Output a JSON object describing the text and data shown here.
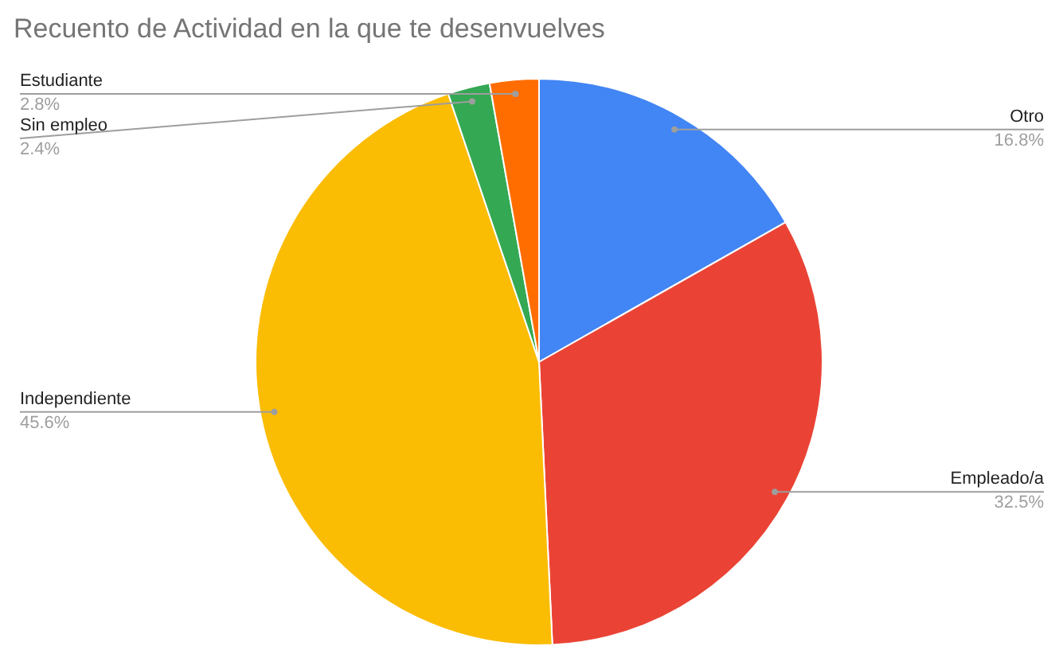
{
  "chart_data": {
    "type": "pie",
    "title": "Recuento de Actividad en la que te desenvuelves",
    "categories": [
      "Otro",
      "Empleado/a",
      "Independiente",
      "Sin empleo",
      "Estudiante"
    ],
    "values": [
      16.8,
      32.5,
      45.6,
      2.4,
      2.8
    ],
    "colors": [
      "#4285f4",
      "#ea4335",
      "#fbbc04",
      "#34a853",
      "#ff6d01"
    ],
    "value_labels": [
      "16.8%",
      "32.5%",
      "45.6%",
      "2.4%",
      "2.8%"
    ]
  }
}
